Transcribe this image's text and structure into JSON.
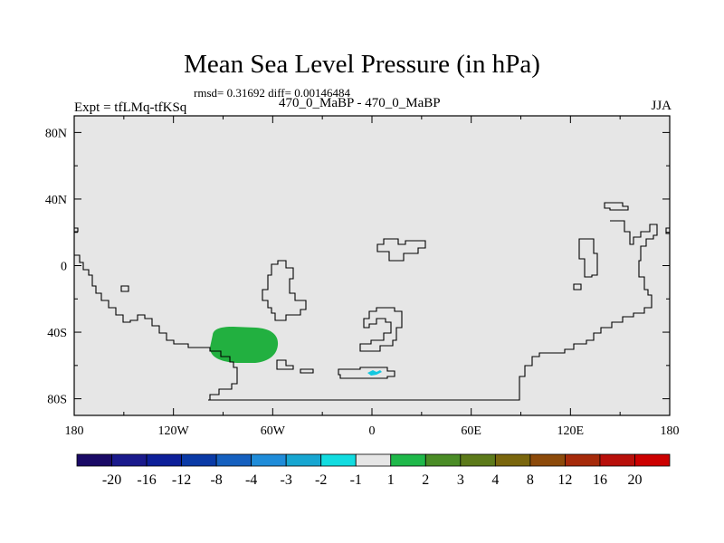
{
  "title": "Mean Sea Level Pressure (in hPa)",
  "stats": "rmsd= 0.31692 diff= 0.00146484",
  "left_label": "Expt = tfLMq-tfKSq",
  "center_label": "470_0_MaBP - 470_0_MaBP",
  "right_label": "JJA",
  "map": {
    "lon_range": [
      -180,
      180
    ],
    "lat_range": [
      -90,
      90
    ],
    "lon_ticks": [
      "180",
      "120W",
      "60W",
      "0",
      "60E",
      "120E",
      "180"
    ],
    "lat_ticks": [
      "80N",
      "40N",
      "0",
      "40S",
      "80S"
    ],
    "background_color": "#e6e6e6"
  },
  "colorbar": {
    "labels": [
      "-20",
      "-16",
      "-12",
      "-8",
      "-4",
      "-3",
      "-2",
      "-1",
      "1",
      "2",
      "3",
      "4",
      "8",
      "12",
      "16",
      "20"
    ],
    "colors": [
      "#1a0a66",
      "#1a1a8c",
      "#0d1f99",
      "#0a3aa6",
      "#1560bf",
      "#1f8cd9",
      "#17a6d1",
      "#12dce0",
      "#e6e6e6",
      "#1fb84a",
      "#4a8c26",
      "#5c7a1a",
      "#7a660d",
      "#8c4a0a",
      "#a62a0a",
      "#b80f0a",
      "#cc0000"
    ]
  },
  "features": [
    {
      "name": "positive anomaly",
      "category": "2",
      "color": "#22b040",
      "lon_center": -77,
      "lat_center": -45
    },
    {
      "name": "negative anomaly",
      "category": "-1",
      "color": "#12c8e0",
      "lon_center": 2,
      "lat_center": -63
    }
  ]
}
